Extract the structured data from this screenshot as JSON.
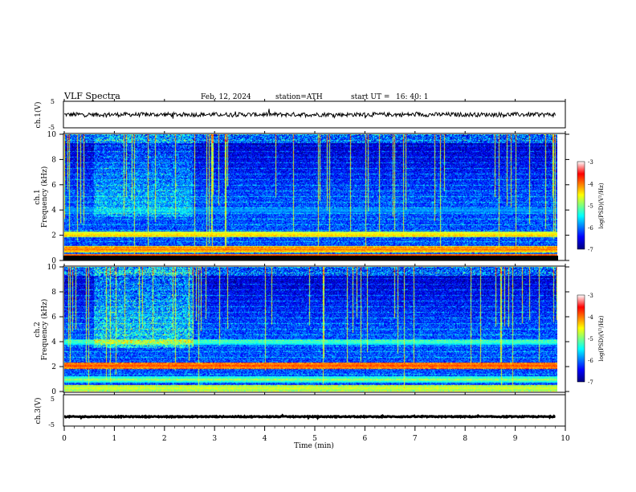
{
  "header": {
    "title": "VLF  Spectra",
    "date": "Feb. 12, 2024",
    "station": "station=ATH",
    "start_label": "start  UT  =",
    "start_time": "16: 40: 1"
  },
  "colors": {
    "jet": [
      "#00007f",
      "#0000ff",
      "#00ffff",
      "#7fff7f",
      "#ffff00",
      "#ff0000",
      "#7f0000"
    ],
    "trace": "#000000",
    "background": "#ffffff"
  },
  "chart_data": [
    {
      "type": "line",
      "panel": "ch1",
      "ylabel": "ch.1(V)",
      "ylim": [
        -5,
        5
      ],
      "y_ticks": [
        "5",
        "-5"
      ],
      "baseline": 0,
      "noise_amplitude": 0.8,
      "description_of_values": "noisy trace around 0 V over 0 to 9.8 min"
    },
    {
      "type": "heatmap",
      "panel": "ch1-spectrogram",
      "ylabel_lines": [
        "ch.1",
        "Frequency  (kHz)"
      ],
      "ylim": [
        0,
        10
      ],
      "y_ticks": [
        "0",
        "2",
        "4",
        "6",
        "8",
        "10"
      ],
      "x_extent_min": [
        0,
        9.8
      ],
      "colorbar": {
        "label": "log(PSD)(V²/Hz)",
        "ticks": [
          "-3",
          "-4",
          "-5",
          "-6",
          "-7"
        ],
        "range": [
          -7,
          -3
        ]
      },
      "bands_khz": [
        {
          "f": 2.1,
          "level": -4.6
        },
        {
          "f": 4.0,
          "level": -6.0
        },
        {
          "f": 0.9,
          "level": -4.2
        },
        {
          "f": 0.3,
          "level": -3.8
        }
      ]
    },
    {
      "type": "heatmap",
      "panel": "ch2-spectrogram",
      "ylabel_lines": [
        "ch.2",
        "Frequency  (kHz)"
      ],
      "ylim": [
        0,
        10
      ],
      "y_ticks": [
        "0",
        "2",
        "4",
        "6",
        "8",
        "10"
      ],
      "x_extent_min": [
        0,
        9.8
      ],
      "colorbar": {
        "label": "log(PSD)(V²/Hz)",
        "ticks": [
          "-3",
          "-4",
          "-5",
          "-6",
          "-7"
        ],
        "range": [
          -7,
          -3
        ]
      },
      "bands_khz": [
        {
          "f": 2.1,
          "level": -4.0
        },
        {
          "f": 4.0,
          "level": -5.4
        },
        {
          "f": 1.0,
          "level": -5.2
        },
        {
          "f": 0.3,
          "level": -4.8
        }
      ]
    },
    {
      "type": "line",
      "panel": "ch3",
      "ylabel": "ch.3(V)",
      "ylim": [
        -5,
        5
      ],
      "y_ticks": [
        "5",
        "-5"
      ],
      "baseline": -2,
      "noise_amplitude": 0.15,
      "xlabel": "Time  (min)",
      "xlim": [
        0,
        10
      ],
      "x_ticks": [
        "0",
        "1",
        "2",
        "3",
        "4",
        "5",
        "6",
        "7",
        "8",
        "9",
        "10"
      ]
    }
  ]
}
